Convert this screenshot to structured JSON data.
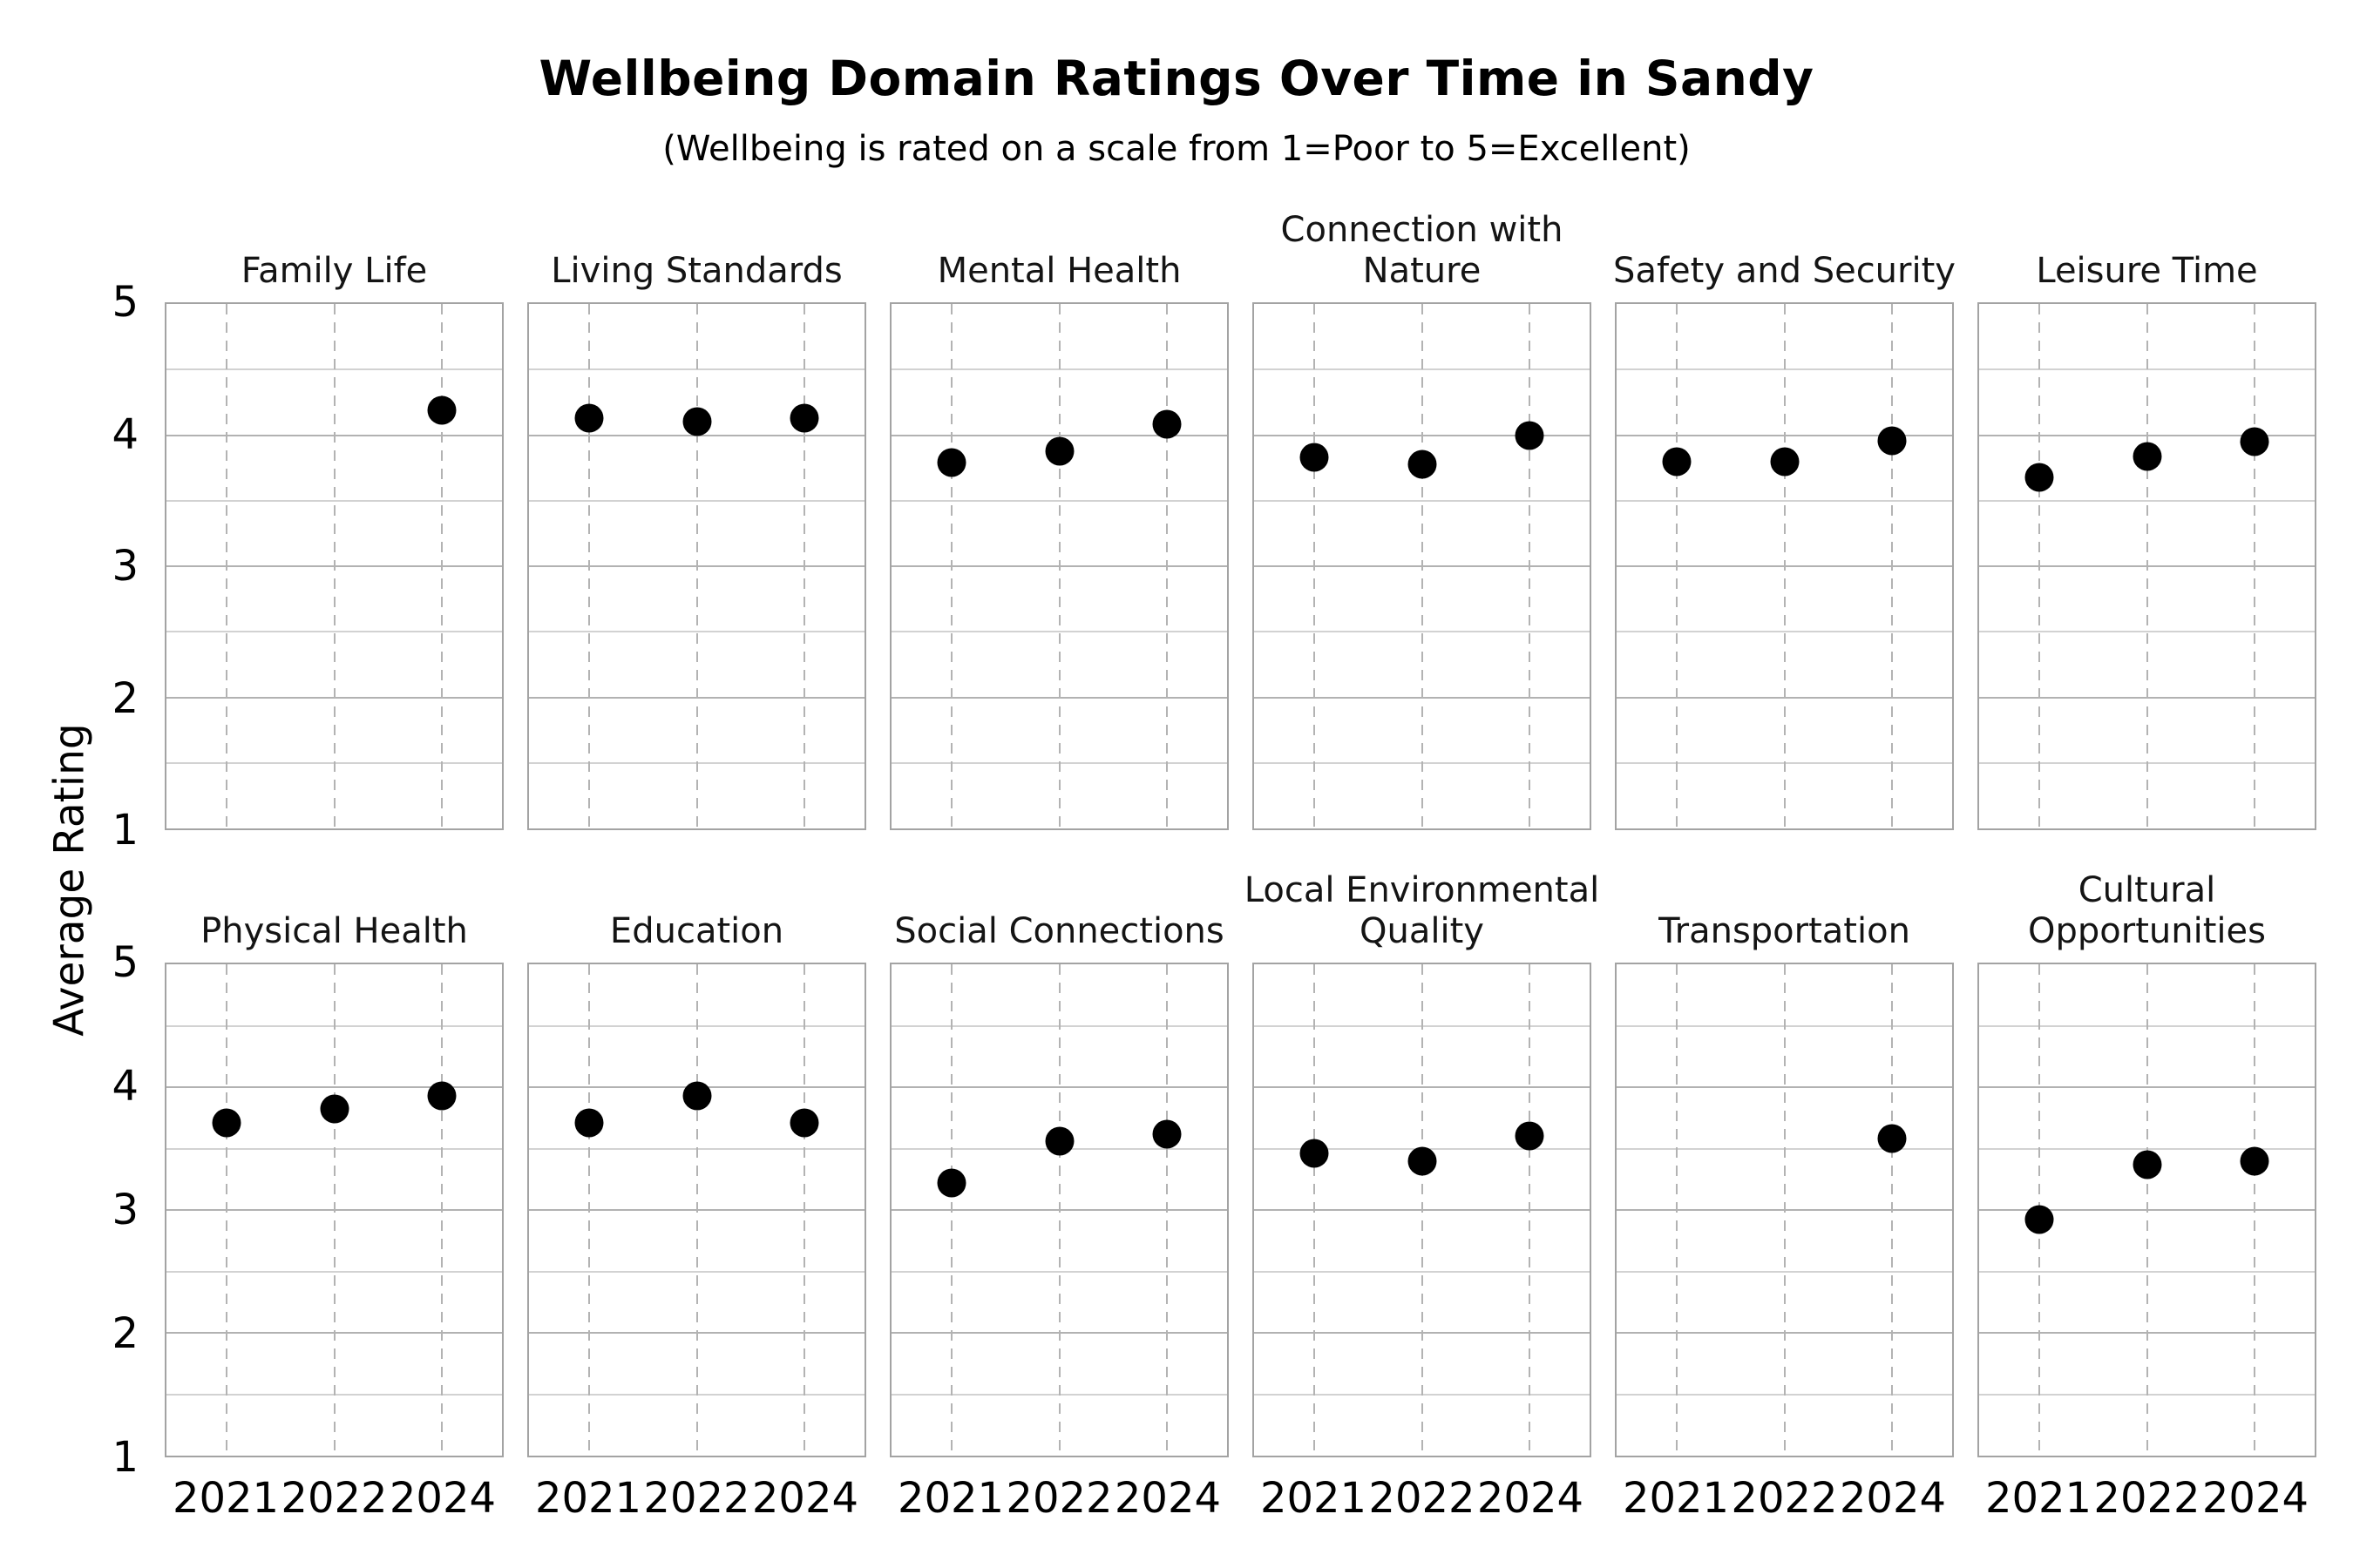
{
  "title": "Wellbeing Domain Ratings Over Time in Sandy",
  "subtitle": "(Wellbeing is rated on a scale from 1=Poor to 5=Excellent)",
  "ylabel": "Average Rating",
  "colors": {
    "dot": "#000000",
    "major_grid": "#b2b2b2",
    "minor_grid": "#d2d2d2",
    "dashed_grid": "#b3b3b3",
    "panel_border": "#a3a3a3",
    "background": "#ffffff"
  },
  "chart_data": {
    "type": "scatter",
    "facet_grid": {
      "rows": 2,
      "cols": 6
    },
    "x_categories": [
      "2021",
      "2022",
      "2024"
    ],
    "ylim": [
      1,
      5
    ],
    "yticks": [
      5,
      4,
      3,
      2,
      1
    ],
    "grid": "horizontal major at integers and minor at halves, vertical dashed lines at each year",
    "legend": "none",
    "panels": [
      {
        "title": "Family Life",
        "title_lines": [
          "Family Life"
        ],
        "values": [
          null,
          null,
          4.19
        ]
      },
      {
        "title": "Living Standards",
        "title_lines": [
          "Living Standards"
        ],
        "values": [
          4.13,
          4.1,
          4.13
        ]
      },
      {
        "title": "Mental Health",
        "title_lines": [
          "Mental Health"
        ],
        "values": [
          3.79,
          3.88,
          4.08
        ]
      },
      {
        "title": "Connection with Nature",
        "title_lines": [
          "Connection with",
          "Nature"
        ],
        "values": [
          3.83,
          3.78,
          4.0
        ]
      },
      {
        "title": "Safety and Security",
        "title_lines": [
          "Safety and Security"
        ],
        "values": [
          3.8,
          3.8,
          3.96
        ]
      },
      {
        "title": "Leisure Time",
        "title_lines": [
          "Leisure Time"
        ],
        "values": [
          3.68,
          3.84,
          3.95
        ]
      },
      {
        "title": "Physical Health",
        "title_lines": [
          "Physical Health"
        ],
        "values": [
          3.71,
          3.82,
          3.93
        ]
      },
      {
        "title": "Education",
        "title_lines": [
          "Education"
        ],
        "values": [
          3.71,
          3.93,
          3.71
        ]
      },
      {
        "title": "Social Connections",
        "title_lines": [
          "Social Connections"
        ],
        "values": [
          3.22,
          3.56,
          3.62
        ]
      },
      {
        "title": "Local Environmental Quality",
        "title_lines": [
          "Local Environmental",
          "Quality"
        ],
        "values": [
          3.46,
          3.4,
          3.6
        ]
      },
      {
        "title": "Transportation",
        "title_lines": [
          "Transportation"
        ],
        "values": [
          null,
          null,
          3.58
        ]
      },
      {
        "title": "Cultural Opportunities",
        "title_lines": [
          "Cultural",
          "Opportunities"
        ],
        "values": [
          2.92,
          3.37,
          3.4
        ]
      }
    ]
  }
}
